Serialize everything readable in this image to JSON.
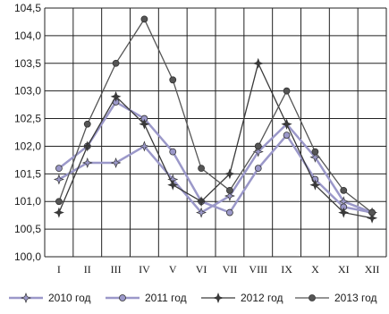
{
  "chart_data": {
    "type": "line",
    "title": "",
    "xlabel": "",
    "ylabel": "",
    "categories": [
      "I",
      "II",
      "III",
      "IV",
      "V",
      "VI",
      "VII",
      "VIII",
      "IX",
      "X",
      "XI",
      "XII"
    ],
    "ylim": [
      100.0,
      104.5
    ],
    "yticks": [
      100.0,
      100.5,
      101.0,
      101.5,
      102.0,
      102.5,
      103.0,
      103.5,
      104.0,
      104.5
    ],
    "ytick_labels": [
      "100,0",
      "100,5",
      "101,0",
      "101,5",
      "102,0",
      "102,5",
      "103,0",
      "103,5",
      "104,0",
      "104,5"
    ],
    "grid": true,
    "legend_position": "bottom",
    "series": [
      {
        "name": "2010 год",
        "marker": "star",
        "color": "#9b98c9",
        "values": [
          101.4,
          101.7,
          101.7,
          102.0,
          101.4,
          100.8,
          101.1,
          101.9,
          102.4,
          101.8,
          101.0,
          100.8
        ]
      },
      {
        "name": "2011 год",
        "marker": "circle",
        "color": "#9b98c9",
        "values": [
          101.6,
          102.0,
          102.8,
          102.5,
          101.9,
          101.0,
          100.8,
          101.6,
          102.2,
          101.4,
          100.9,
          100.8
        ]
      },
      {
        "name": "2012 год",
        "marker": "star",
        "color": "#3a3a3a",
        "values": [
          100.8,
          102.0,
          102.9,
          102.4,
          101.3,
          101.0,
          101.5,
          103.5,
          102.4,
          101.3,
          100.8,
          100.7
        ]
      },
      {
        "name": "2013 год",
        "marker": "circle",
        "color": "#555555",
        "values": [
          101.0,
          102.4,
          103.5,
          104.3,
          103.2,
          101.6,
          101.2,
          102.0,
          103.0,
          101.9,
          101.2,
          100.8
        ]
      }
    ]
  }
}
